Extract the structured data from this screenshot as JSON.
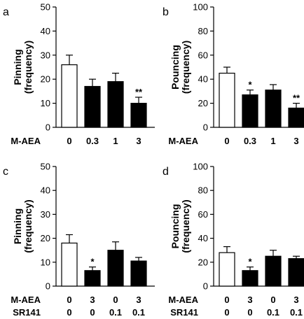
{
  "chart_data": [
    {
      "panel": "a",
      "type": "bar",
      "ylabel_lines": [
        "Pinning",
        "(frequency)"
      ],
      "ylim": [
        0,
        50
      ],
      "yticks": [
        "0",
        "10",
        "20",
        "30",
        "40",
        "50"
      ],
      "rows": [
        {
          "label": "M-AEA",
          "values": [
            "0",
            "0.3",
            "1",
            "3"
          ]
        }
      ],
      "values": [
        26,
        17,
        19,
        10
      ],
      "errors": [
        4,
        3,
        3.5,
        2.5
      ],
      "fills": [
        "#ffffff",
        "#000000",
        "#000000",
        "#000000"
      ],
      "annotations": [
        "",
        "",
        "",
        "**"
      ]
    },
    {
      "panel": "b",
      "type": "bar",
      "ylabel_lines": [
        "Pouncing",
        "(frequency)"
      ],
      "ylim": [
        0,
        100
      ],
      "yticks": [
        "0",
        "20",
        "40",
        "60",
        "80",
        "100"
      ],
      "rows": [
        {
          "label": "M-AEA",
          "values": [
            "0",
            "0.3",
            "1",
            "3"
          ]
        }
      ],
      "values": [
        45,
        27,
        31,
        16
      ],
      "errors": [
        5,
        4,
        4.5,
        4
      ],
      "fills": [
        "#ffffff",
        "#000000",
        "#000000",
        "#000000"
      ],
      "annotations": [
        "",
        "*",
        "",
        "**"
      ]
    },
    {
      "panel": "c",
      "type": "bar",
      "ylabel_lines": [
        "Pinning",
        "(frequency)"
      ],
      "ylim": [
        0,
        50
      ],
      "yticks": [
        "0",
        "10",
        "20",
        "30",
        "40",
        "50"
      ],
      "rows": [
        {
          "label": "M-AEA",
          "values": [
            "0",
            "3",
            "0",
            "3"
          ]
        },
        {
          "label": "SR141",
          "values": [
            "0",
            "0",
            "0.1",
            "0.1"
          ]
        }
      ],
      "values": [
        18,
        6.5,
        15,
        10.5
      ],
      "errors": [
        3.5,
        1.5,
        3.5,
        1.5
      ],
      "fills": [
        "#ffffff",
        "#000000",
        "#000000",
        "#000000"
      ],
      "annotations": [
        "",
        "*",
        "",
        ""
      ]
    },
    {
      "panel": "d",
      "type": "bar",
      "ylabel_lines": [
        "Pouncing",
        "(frequency)"
      ],
      "ylim": [
        0,
        100
      ],
      "yticks": [
        "0",
        "20",
        "40",
        "60",
        "80",
        "100"
      ],
      "rows": [
        {
          "label": "M-AEA",
          "values": [
            "0",
            "3",
            "0",
            "3"
          ]
        },
        {
          "label": "SR141",
          "values": [
            "0",
            "0",
            "0.1",
            "0.1"
          ]
        }
      ],
      "values": [
        28,
        13,
        25,
        23
      ],
      "errors": [
        5,
        3,
        5,
        2
      ],
      "fills": [
        "#ffffff",
        "#000000",
        "#000000",
        "#000000"
      ],
      "annotations": [
        "",
        "*",
        "",
        ""
      ]
    }
  ]
}
